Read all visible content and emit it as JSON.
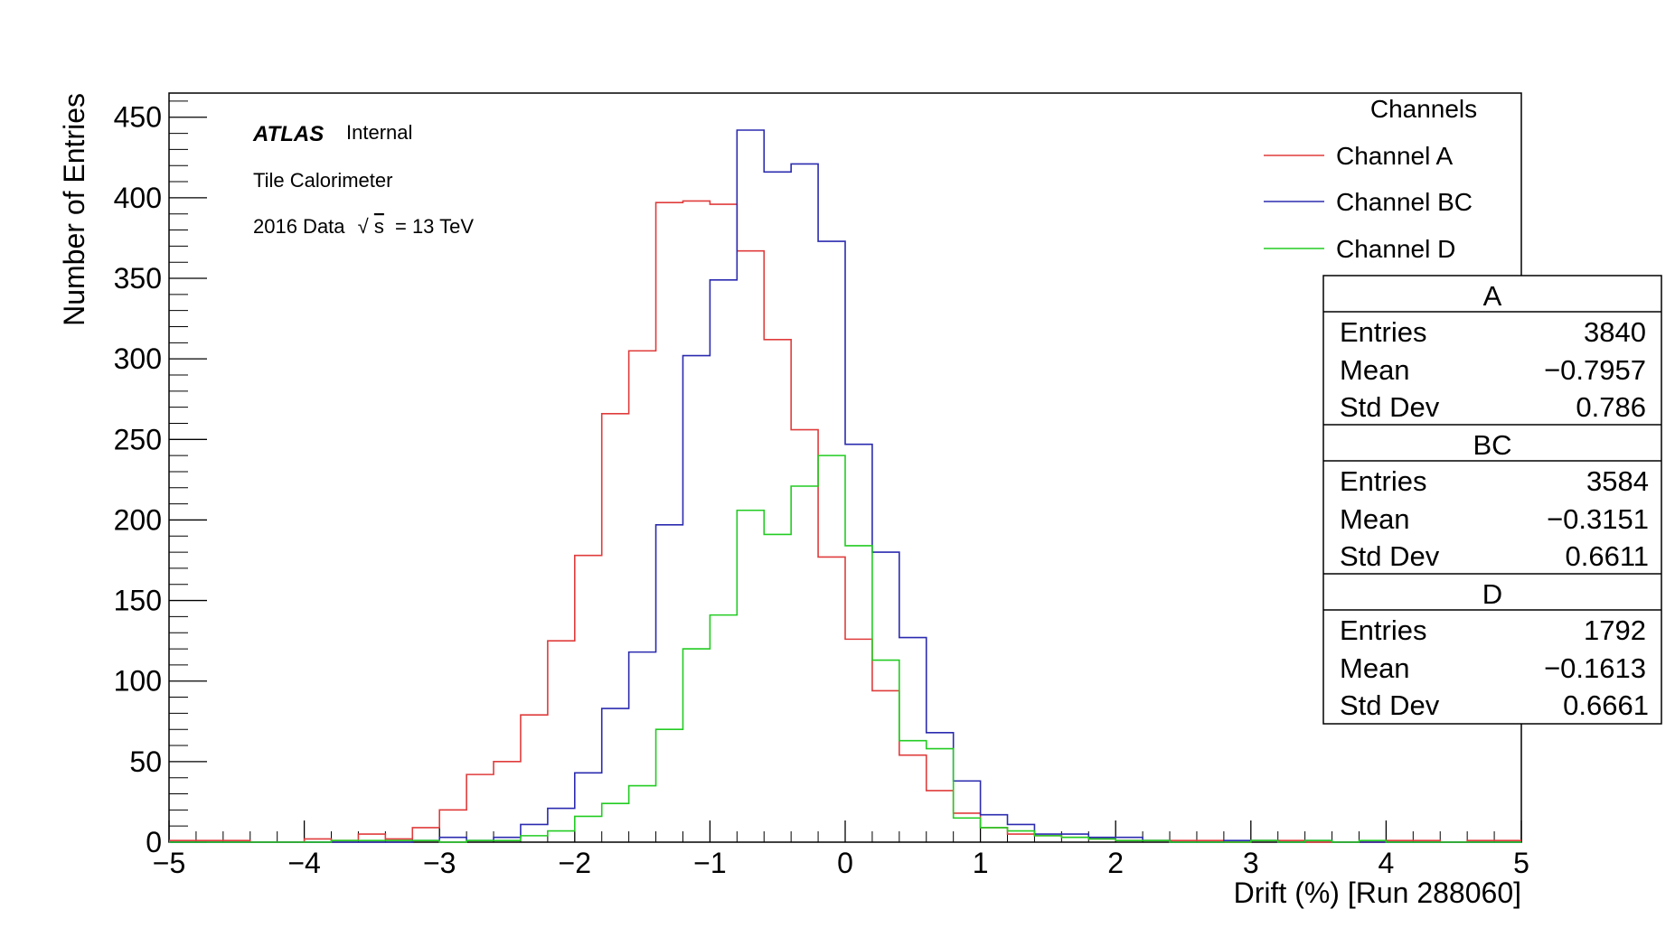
{
  "chart_data": {
    "type": "histogram",
    "xlabel": "Drift (%) [Run 288060]",
    "ylabel": "Number of Entries",
    "xlim": [
      -5,
      5
    ],
    "ylim": [
      0,
      465
    ],
    "x_ticks": [
      -5,
      -4,
      -3,
      -2,
      -1,
      0,
      1,
      2,
      3,
      4,
      5
    ],
    "x_tick_labels": [
      "−5",
      "−4",
      "−3",
      "−2",
      "−1",
      "0",
      "1",
      "2",
      "3",
      "4",
      "5"
    ],
    "y_ticks": [
      0,
      50,
      100,
      150,
      200,
      250,
      300,
      350,
      400,
      450
    ],
    "y_tick_labels": [
      "0",
      "50",
      "100",
      "150",
      "200",
      "250",
      "300",
      "350",
      "400",
      "450"
    ],
    "bin_edges_start": -5,
    "bin_width": 0.2,
    "grid": false,
    "annotations": {
      "atlas": "ATLAS",
      "internal": "Internal",
      "detector": "Tile Calorimeter",
      "data_label_pre": "2016 Data",
      "sqrt": "√",
      "s": "s",
      "energy": "= 13 TeV"
    },
    "legend": {
      "title": "Channels",
      "position": "top-right"
    },
    "series": [
      {
        "name": "Channel A",
        "color": "#e03c3c",
        "values": [
          1,
          1,
          1,
          0,
          0,
          2,
          1,
          5,
          2,
          9,
          20,
          42,
          50,
          79,
          125,
          178,
          266,
          305,
          397,
          398,
          396,
          367,
          312,
          256,
          177,
          126,
          94,
          54,
          32,
          18,
          9,
          5,
          4,
          3,
          2,
          1,
          1,
          1,
          1,
          0,
          1,
          1,
          0,
          0,
          0,
          1,
          1,
          0,
          1,
          1
        ]
      },
      {
        "name": "Channel BC",
        "color": "#2b2bb0",
        "values": [
          0,
          0,
          0,
          0,
          0,
          0,
          0,
          0,
          0,
          1,
          3,
          1,
          3,
          11,
          21,
          43,
          83,
          118,
          197,
          302,
          349,
          442,
          416,
          421,
          373,
          247,
          180,
          127,
          68,
          38,
          17,
          11,
          5,
          5,
          3,
          3,
          1,
          0,
          0,
          1,
          1,
          0,
          1,
          0,
          0,
          0,
          0,
          0,
          0,
          0
        ]
      },
      {
        "name": "Channel D",
        "color": "#22cc22",
        "values": [
          0,
          0,
          0,
          0,
          0,
          0,
          1,
          1,
          1,
          1,
          0,
          1,
          1,
          4,
          7,
          16,
          24,
          35,
          70,
          120,
          141,
          206,
          191,
          221,
          240,
          184,
          113,
          63,
          58,
          15,
          9,
          7,
          4,
          3,
          2,
          1,
          1,
          0,
          0,
          0,
          1,
          0,
          1,
          0,
          1,
          0,
          0,
          0,
          0,
          0
        ]
      }
    ],
    "stats": [
      {
        "title": "A",
        "entries_label": "Entries",
        "entries": "3840",
        "mean_label": "Mean",
        "mean": "−0.7957",
        "std_label": "Std Dev",
        "std": "0.786"
      },
      {
        "title": "BC",
        "entries_label": "Entries",
        "entries": "3584",
        "mean_label": "Mean",
        "mean": "−0.3151",
        "std_label": "Std Dev",
        "std": "0.6611"
      },
      {
        "title": "D",
        "entries_label": "Entries",
        "entries": "1792",
        "mean_label": "Mean",
        "mean": "−0.1613",
        "std_label": "Std Dev",
        "std": "0.6661"
      }
    ]
  }
}
